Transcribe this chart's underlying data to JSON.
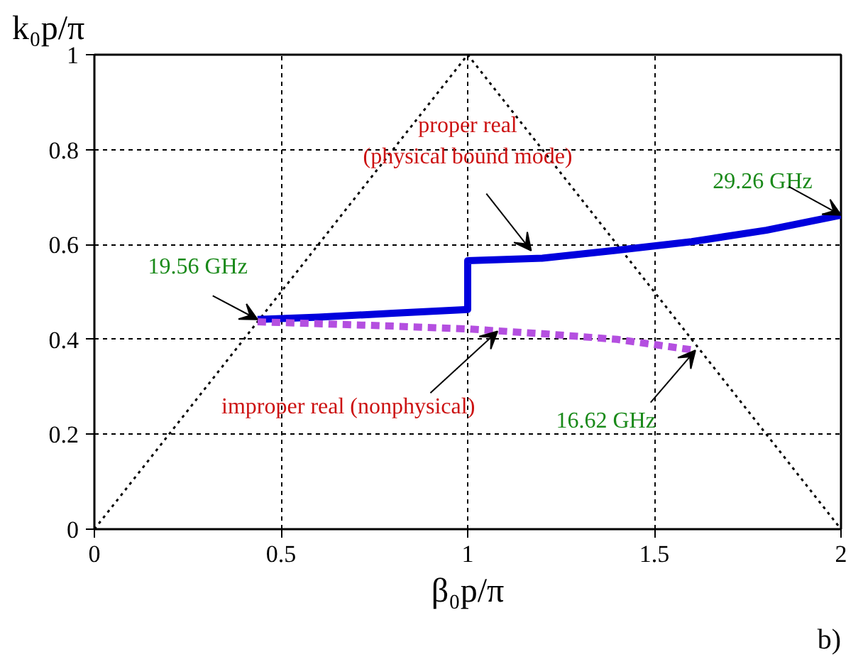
{
  "chart_data": {
    "type": "line",
    "xlabel": "β₀p/π",
    "ylabel": "k₀p/π",
    "xlim": [
      0,
      2
    ],
    "ylim": [
      0,
      1
    ],
    "xticks": [
      0,
      0.5,
      1,
      1.5,
      2
    ],
    "yticks": [
      0,
      0.2,
      0.4,
      0.6,
      0.8,
      1
    ],
    "grid": true,
    "series": [
      {
        "color": "#000000",
        "line_style": "dotted",
        "x": [
          0,
          1,
          2
        ],
        "values": [
          0,
          1,
          0
        ]
      },
      {
        "color": "#0000dd",
        "line_style": "solid",
        "x": [
          0.437,
          0.6,
          0.8,
          1.0,
          1.0,
          1.2,
          1.4,
          1.6,
          1.8,
          2.0
        ],
        "values": [
          0.442,
          0.447,
          0.455,
          0.463,
          0.566,
          0.571,
          0.588,
          0.606,
          0.63,
          0.662
        ]
      },
      {
        "color": "#b44fe0",
        "line_style": "dashed",
        "x": [
          0.437,
          0.6,
          0.8,
          1.0,
          1.2,
          1.4,
          1.61
        ],
        "values": [
          0.437,
          0.433,
          0.428,
          0.422,
          0.412,
          0.4,
          0.377
        ]
      }
    ],
    "annotations": [
      {
        "text": "proper real\n(physical bound mode)",
        "x": 1.17,
        "y": 0.587
      },
      {
        "text": "19.56 GHz",
        "x": 0.437,
        "y": 0.442
      },
      {
        "text": "29.26 GHz",
        "x": 2.0,
        "y": 0.662
      },
      {
        "text": "improper real (nonphysical)",
        "x": 1.08,
        "y": 0.417
      },
      {
        "text": "16.62 GHz",
        "x": 1.61,
        "y": 0.377
      },
      "b)"
    ]
  }
}
